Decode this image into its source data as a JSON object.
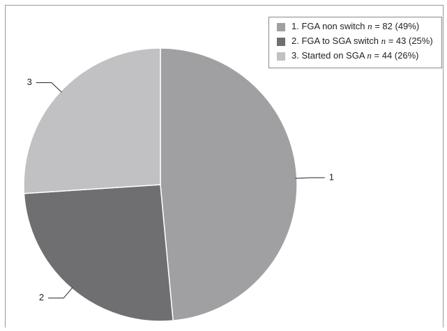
{
  "chart_data": {
    "type": "pie",
    "categories": [
      "1",
      "2",
      "3"
    ],
    "legend_labels": [
      "1. FGA non switch n = 82 (49%)",
      "2. FGA to SGA switch n = 43 (25%)",
      "3. Started on SGA n = 44 (26%)"
    ],
    "values": [
      82,
      43,
      44
    ],
    "colors": [
      "#a0a0a2",
      "#6f6f72",
      "#c1c1c3"
    ],
    "legend": "top-right"
  }
}
